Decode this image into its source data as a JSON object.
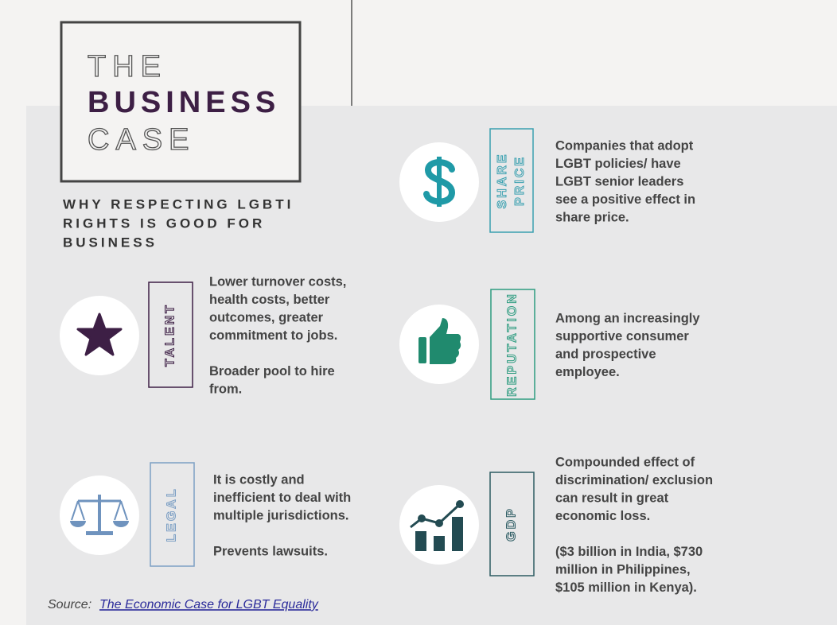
{
  "header": {
    "title": [
      "THE",
      "BUSINESS",
      "CASE"
    ],
    "subtitle": [
      "WHY RESPECTING LGBTI",
      "RIGHTS IS GOOD FOR",
      "BUSINESS"
    ]
  },
  "items": [
    {
      "label": [
        "TALENT"
      ],
      "text": [
        [
          "Lower turnover costs,",
          "health costs, better",
          "outcomes, greater",
          "commitment to jobs."
        ],
        [
          "Broader pool to hire",
          "from."
        ]
      ]
    },
    {
      "label": [
        "LEGAL"
      ],
      "text": [
        [
          "It is costly and",
          "inefficient to deal with",
          "multiple jurisdictions."
        ],
        [
          "Prevents lawsuits."
        ]
      ]
    },
    {
      "label": [
        "SHARE",
        "PRICE"
      ],
      "text": [
        [
          "Companies that adopt",
          "LGBT policies/ have",
          "LGBT senior leaders",
          "see a positive effect in",
          "share price."
        ]
      ]
    },
    {
      "label": [
        "REPUTATION"
      ],
      "text": [
        [
          "Among an increasingly",
          "supportive consumer",
          "and prospective",
          "employee."
        ]
      ]
    },
    {
      "label": [
        "GDP"
      ],
      "text": [
        [
          "Compounded effect of",
          "discrimination/ exclusion",
          "can result in great",
          "economic loss."
        ],
        [
          "($3 billion in India, $730",
          "million in Philippines,",
          "$105 million in Kenya)."
        ]
      ]
    }
  ],
  "source": {
    "prefix": "Source:",
    "link": "The Economic Case for LGBT Equality"
  }
}
